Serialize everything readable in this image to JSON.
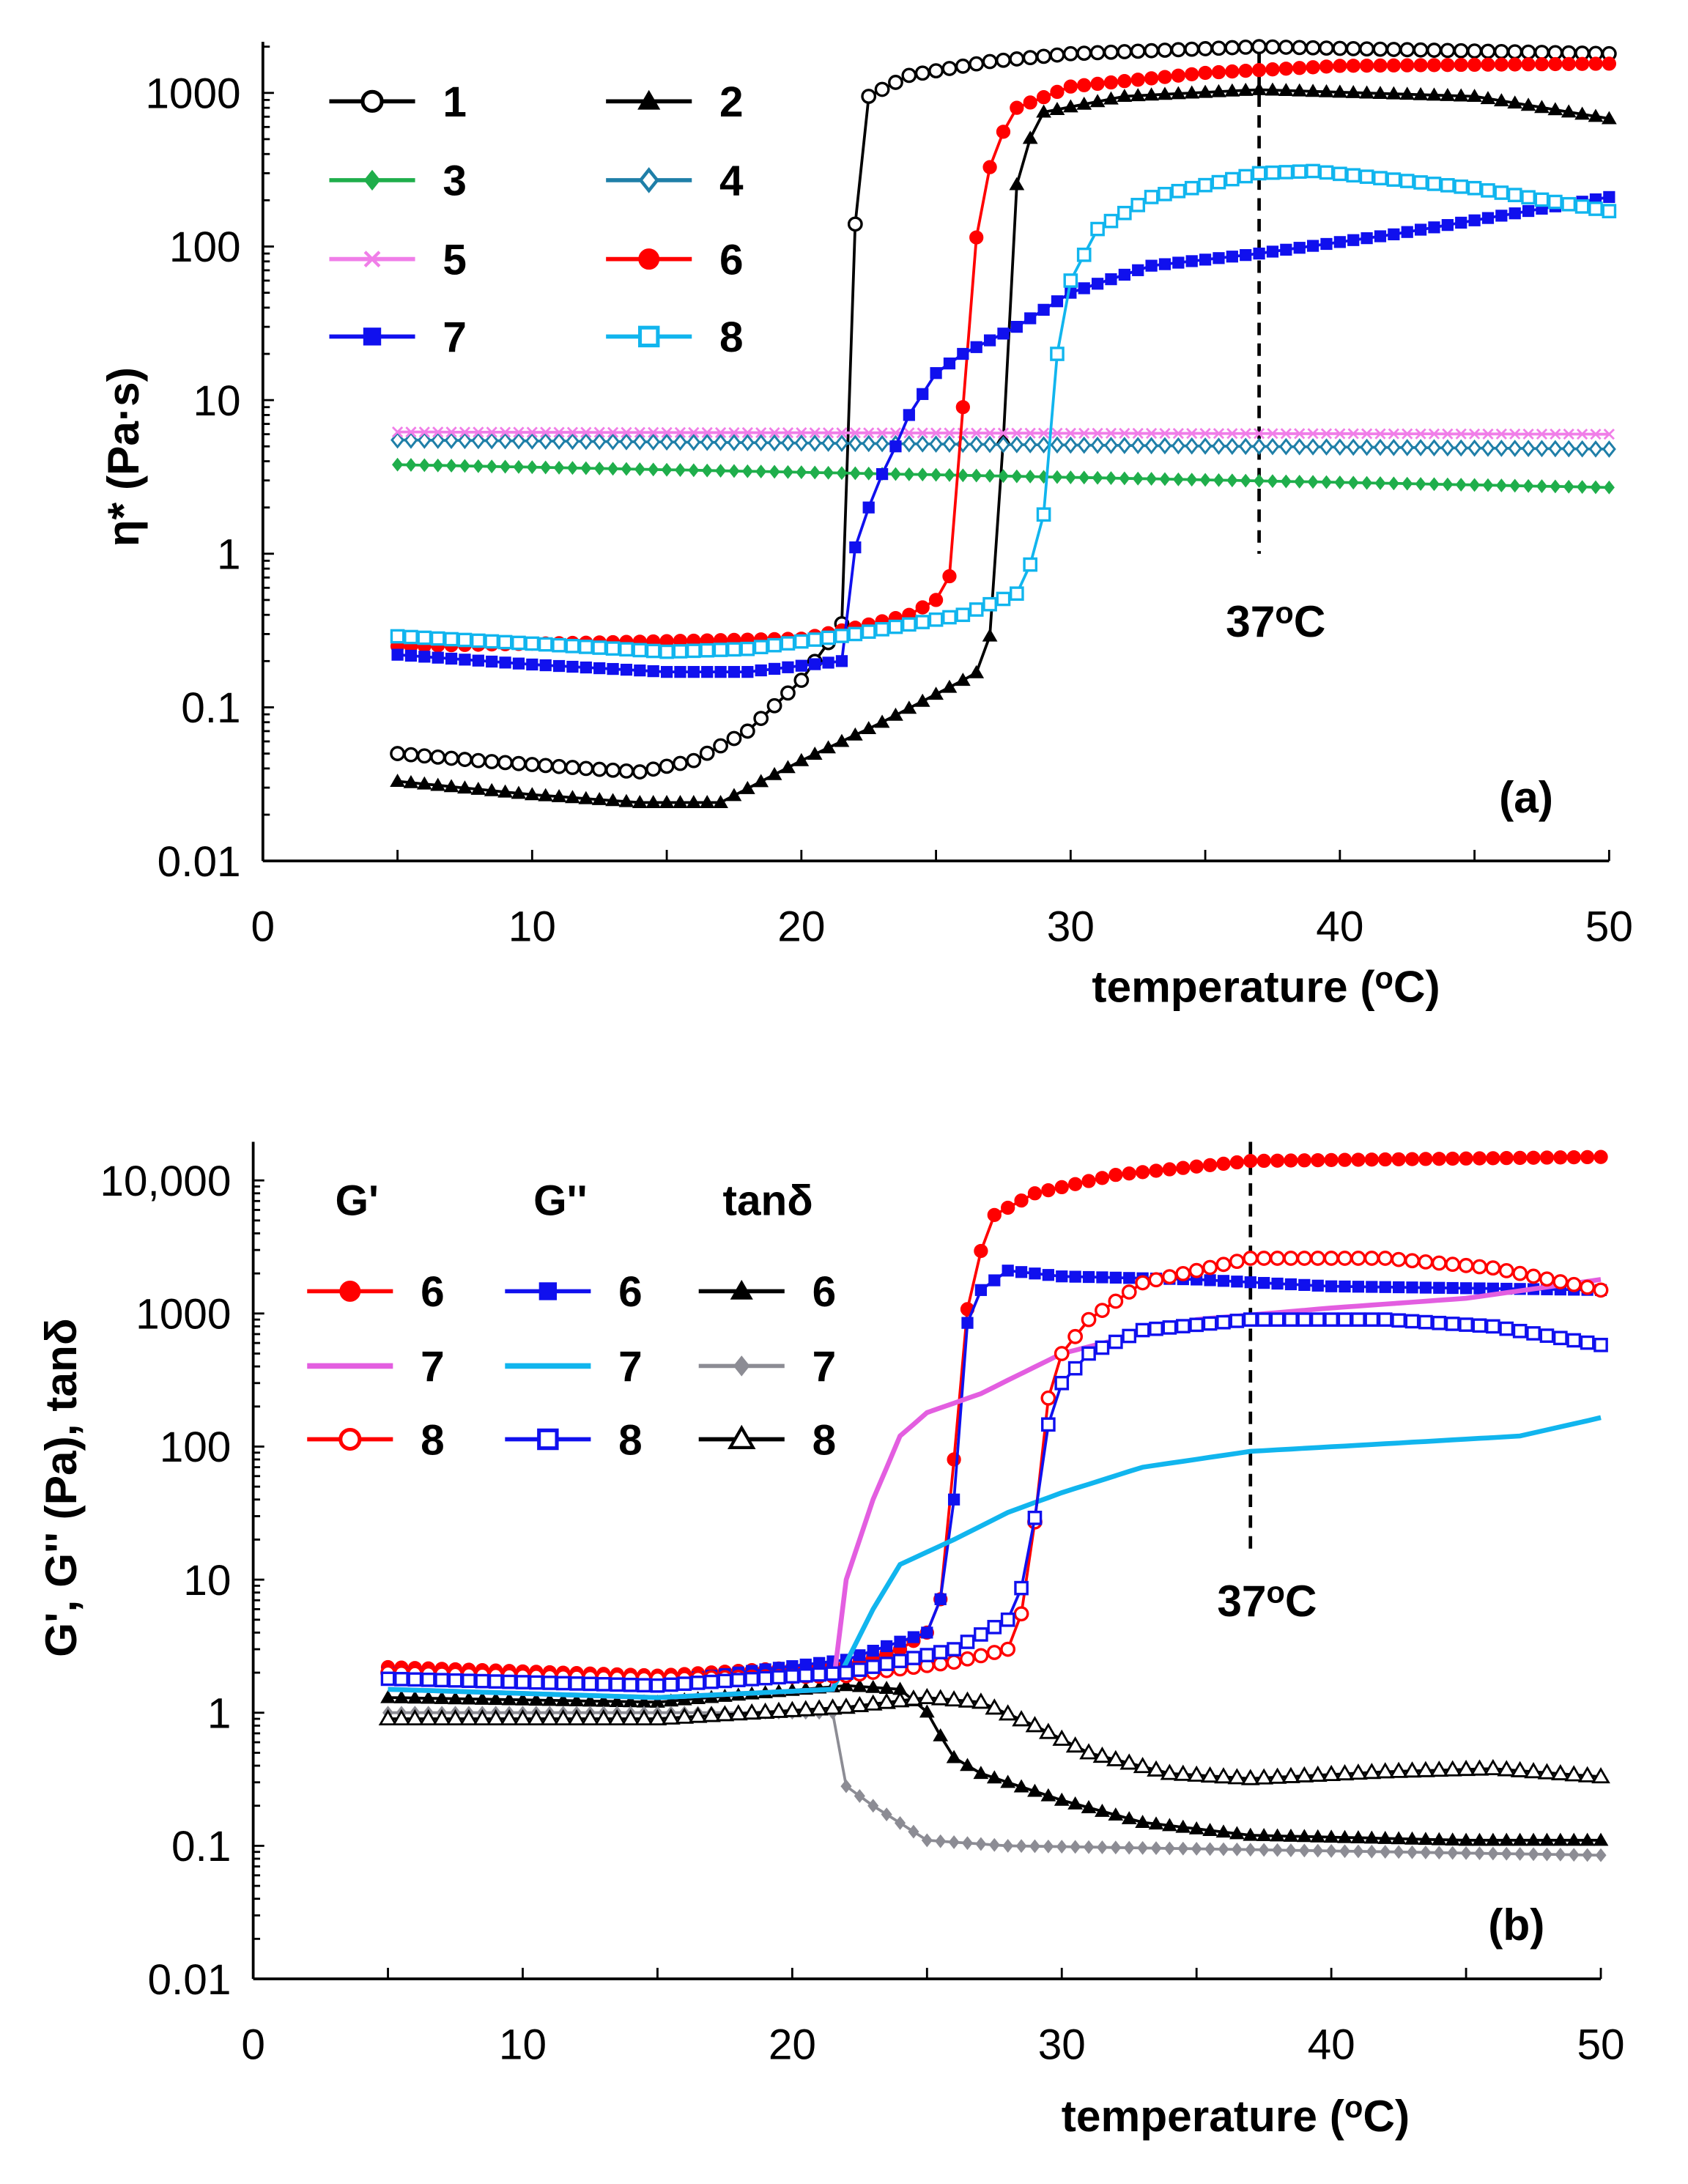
{
  "chart_data": [
    {
      "type": "line",
      "id": "a",
      "panel_label": "(a)",
      "xlabel": {
        "text": "temperature (",
        "sup": "o",
        "end": "C)"
      },
      "ylabel": "η* (Pa·s)",
      "xlim": [
        0,
        50
      ],
      "ylim": [
        0.01,
        2150
      ],
      "yscale": "log",
      "xticks": [
        "0",
        "10",
        "20",
        "30",
        "40",
        "50"
      ],
      "yticks": [
        "1000",
        "100",
        "10",
        "1",
        "0.1",
        "0.01"
      ],
      "annotation": {
        "value": "37",
        "sup": "o",
        "unit": "C",
        "x": 37
      },
      "series": [
        {
          "name": "1",
          "color": "#000000",
          "marker": "circle-open",
          "points": [
            [
              5,
              0.05
            ],
            [
              8,
              0.045
            ],
            [
              12,
              0.04
            ],
            [
              14,
              0.038
            ],
            [
              16,
              0.045
            ],
            [
              18,
              0.07
            ],
            [
              20,
              0.15
            ],
            [
              21.5,
              0.35
            ],
            [
              22,
              140
            ],
            [
              22.5,
              950
            ],
            [
              24,
              1300
            ],
            [
              27,
              1600
            ],
            [
              30,
              1800
            ],
            [
              37,
              2000
            ],
            [
              40,
              1950
            ],
            [
              50,
              1800
            ]
          ]
        },
        {
          "name": "2",
          "color": "#000000",
          "marker": "triangle",
          "points": [
            [
              5,
              0.033
            ],
            [
              10,
              0.027
            ],
            [
              14,
              0.024
            ],
            [
              17,
              0.024
            ],
            [
              20,
              0.045
            ],
            [
              23,
              0.08
            ],
            [
              26,
              0.15
            ],
            [
              26.8,
              0.18
            ],
            [
              27.3,
              0.6
            ],
            [
              27.8,
              160
            ],
            [
              28.2,
              400
            ],
            [
              29,
              750
            ],
            [
              32,
              950
            ],
            [
              37,
              1050
            ],
            [
              45,
              950
            ],
            [
              50,
              680
            ]
          ]
        },
        {
          "name": "3",
          "color": "#1fae4b",
          "marker": "diamond",
          "points": [
            [
              5,
              3.8
            ],
            [
              50,
              2.7
            ]
          ]
        },
        {
          "name": "4",
          "color": "#1f7fa8",
          "marker": "diamond-open",
          "points": [
            [
              5,
              5.5
            ],
            [
              50,
              4.8
            ]
          ]
        },
        {
          "name": "5",
          "color": "#f07ee8",
          "marker": "x",
          "points": [
            [
              5,
              6.2
            ],
            [
              50,
              6.0
            ]
          ]
        },
        {
          "name": "6",
          "color": "#ff0000",
          "marker": "circle",
          "points": [
            [
              5,
              0.25
            ],
            [
              20,
              0.28
            ],
            [
              22,
              0.33
            ],
            [
              24,
              0.4
            ],
            [
              25,
              0.5
            ],
            [
              25.4,
              0.6
            ],
            [
              25.8,
              1.2
            ],
            [
              26,
              9
            ],
            [
              26.3,
              70
            ],
            [
              26.8,
              240
            ],
            [
              27.2,
              450
            ],
            [
              28,
              800
            ],
            [
              30,
              1100
            ],
            [
              35,
              1350
            ],
            [
              40,
              1500
            ],
            [
              50,
              1550
            ]
          ]
        },
        {
          "name": "7",
          "color": "#1010ee",
          "marker": "square",
          "points": [
            [
              5,
              0.22
            ],
            [
              10,
              0.19
            ],
            [
              15,
              0.17
            ],
            [
              18,
              0.17
            ],
            [
              21.5,
              0.2
            ],
            [
              22,
              1.1
            ],
            [
              22.5,
              2
            ],
            [
              23,
              3.3
            ],
            [
              23.5,
              5
            ],
            [
              24,
              8
            ],
            [
              25,
              15
            ],
            [
              26,
              20
            ],
            [
              28,
              30
            ],
            [
              30,
              50
            ],
            [
              33,
              75
            ],
            [
              37,
              90
            ],
            [
              42,
              120
            ],
            [
              50,
              210
            ]
          ]
        },
        {
          "name": "8",
          "color": "#11b5ee",
          "marker": "square-open",
          "points": [
            [
              5,
              0.29
            ],
            [
              10,
              0.26
            ],
            [
              15,
              0.23
            ],
            [
              18,
              0.24
            ],
            [
              22,
              0.3
            ],
            [
              26,
              0.4
            ],
            [
              28,
              0.55
            ],
            [
              28.5,
              0.85
            ],
            [
              29,
              1.8
            ],
            [
              29.5,
              20
            ],
            [
              30,
              60
            ],
            [
              31,
              130
            ],
            [
              33,
              210
            ],
            [
              37,
              300
            ],
            [
              39,
              310
            ],
            [
              45,
              240
            ],
            [
              50,
              170
            ]
          ]
        }
      ]
    },
    {
      "type": "line",
      "id": "b",
      "panel_label": "(b)",
      "xlabel": {
        "text": "temperature (",
        "sup": "o",
        "end": "C)"
      },
      "ylabel": "G', G'' (Pa), tanδ",
      "xlim": [
        0,
        50
      ],
      "ylim": [
        0.01,
        19500
      ],
      "yscale": "log",
      "xticks": [
        "0",
        "10",
        "20",
        "30",
        "40",
        "50"
      ],
      "yticks": [
        "10,000",
        "1000",
        "100",
        "10",
        "1",
        "0.1",
        "0.01"
      ],
      "annotation": {
        "value": "37",
        "sup": "o",
        "unit": "C",
        "x": 37
      },
      "legend_headers": [
        "G'",
        "G''",
        "tanδ"
      ],
      "series": [
        {
          "name": "6",
          "group": "G'",
          "color": "#ff0000",
          "marker": "circle",
          "points": [
            [
              5,
              2.2
            ],
            [
              15,
              1.9
            ],
            [
              22,
              2.3
            ],
            [
              24,
              3
            ],
            [
              25,
              4
            ],
            [
              25.6,
              8
            ],
            [
              26,
              80
            ],
            [
              26.3,
              650
            ],
            [
              26.8,
              2300
            ],
            [
              27.5,
              5500
            ],
            [
              29,
              8000
            ],
            [
              32,
              11000
            ],
            [
              37,
              14000
            ],
            [
              50,
              15000
            ]
          ]
        },
        {
          "name": "6",
          "group": "G''",
          "color": "#1010ee",
          "marker": "square",
          "points": [
            [
              5,
              2.0
            ],
            [
              15,
              1.7
            ],
            [
              22,
              2.5
            ],
            [
              25,
              4
            ],
            [
              25.6,
              8
            ],
            [
              26,
              40
            ],
            [
              26.5,
              850
            ],
            [
              27,
              1500
            ],
            [
              28,
              2100
            ],
            [
              30,
              1900
            ],
            [
              35,
              1800
            ],
            [
              40,
              1600
            ],
            [
              50,
              1500
            ]
          ]
        },
        {
          "name": "6",
          "group": "tanδ",
          "color": "#000000",
          "marker": "triangle",
          "points": [
            [
              5,
              1.3
            ],
            [
              15,
              1.2
            ],
            [
              22,
              1.6
            ],
            [
              24,
              1.5
            ],
            [
              25.3,
              0.9
            ],
            [
              25.7,
              0.5
            ],
            [
              27,
              0.35
            ],
            [
              30,
              0.22
            ],
            [
              33,
              0.15
            ],
            [
              37,
              0.12
            ],
            [
              45,
              0.11
            ],
            [
              50,
              0.11
            ]
          ]
        },
        {
          "name": "7",
          "group": "G'",
          "color": "#e35ee0",
          "marker": "none",
          "points": [
            [
              5,
              1.5
            ],
            [
              15,
              1.3
            ],
            [
              21.5,
              1.5
            ],
            [
              22,
              10
            ],
            [
              23,
              40
            ],
            [
              24,
              120
            ],
            [
              25,
              180
            ],
            [
              27,
              250
            ],
            [
              30,
              500
            ],
            [
              35,
              900
            ],
            [
              40,
              1100
            ],
            [
              45,
              1300
            ],
            [
              50,
              1800
            ]
          ]
        },
        {
          "name": "7",
          "group": "G''",
          "color": "#11b5ee",
          "marker": "none",
          "points": [
            [
              5,
              1.5
            ],
            [
              15,
              1.3
            ],
            [
              21.5,
              1.5
            ],
            [
              23,
              6
            ],
            [
              24,
              13
            ],
            [
              26,
              20
            ],
            [
              28,
              32
            ],
            [
              30,
              45
            ],
            [
              33,
              70
            ],
            [
              37,
              92
            ],
            [
              42,
              105
            ],
            [
              47,
              120
            ],
            [
              50,
              165
            ]
          ]
        },
        {
          "name": "7",
          "group": "tanδ",
          "color": "#8c8c94",
          "marker": "diamond",
          "points": [
            [
              5,
              1.0
            ],
            [
              15,
              1.0
            ],
            [
              21.5,
              1.0
            ],
            [
              21.8,
              0.3
            ],
            [
              23,
              0.2
            ],
            [
              25,
              0.11
            ],
            [
              28,
              0.1
            ],
            [
              50,
              0.085
            ]
          ]
        },
        {
          "name": "8",
          "group": "G'",
          "color": "#ff0000",
          "marker": "circle-open",
          "points": [
            [
              5,
              2.0
            ],
            [
              15,
              1.8
            ],
            [
              22,
              1.9
            ],
            [
              26,
              2.4
            ],
            [
              28,
              3
            ],
            [
              28.8,
              8
            ],
            [
              29.3,
              170
            ],
            [
              30,
              500
            ],
            [
              31,
              900
            ],
            [
              33,
              1700
            ],
            [
              37,
              2600
            ],
            [
              42,
              2600
            ],
            [
              46,
              2200
            ],
            [
              50,
              1500
            ]
          ]
        },
        {
          "name": "8",
          "group": "G''",
          "color": "#1010ee",
          "marker": "square-open",
          "points": [
            [
              5,
              1.8
            ],
            [
              15,
              1.6
            ],
            [
              22,
              2
            ],
            [
              26,
              3
            ],
            [
              28,
              5
            ],
            [
              28.8,
              12
            ],
            [
              29.3,
              110
            ],
            [
              30,
              300
            ],
            [
              31,
              500
            ],
            [
              33,
              750
            ],
            [
              37,
              900
            ],
            [
              42,
              900
            ],
            [
              46,
              800
            ],
            [
              50,
              580
            ]
          ]
        },
        {
          "name": "8",
          "group": "tanδ",
          "color": "#000000",
          "marker": "triangle-open",
          "points": [
            [
              5,
              0.9
            ],
            [
              15,
              0.9
            ],
            [
              22,
              1.1
            ],
            [
              25,
              1.3
            ],
            [
              27,
              1.2
            ],
            [
              29,
              0.8
            ],
            [
              31,
              0.5
            ],
            [
              34,
              0.35
            ],
            [
              37,
              0.32
            ],
            [
              42,
              0.36
            ],
            [
              46,
              0.38
            ],
            [
              50,
              0.33
            ]
          ]
        }
      ]
    }
  ]
}
